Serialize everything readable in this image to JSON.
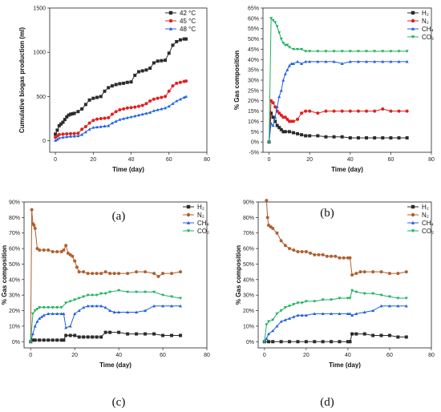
{
  "chart_data": [
    {
      "type": "line",
      "panel_label": "(a)",
      "xlabel": "Time (day)",
      "ylabel": "Cumulative biogas production (ml)",
      "xlim": [
        -3,
        80
      ],
      "ylim": [
        -130,
        1500
      ],
      "xticks": [
        0,
        20,
        40,
        60,
        80
      ],
      "yticks": [
        0,
        500,
        1000,
        1500
      ],
      "yformat": "plain",
      "legend": "top-right",
      "series": [
        {
          "name": "42 °C",
          "color": "#2b2b2b",
          "marker": "square",
          "x": [
            0,
            1,
            2,
            3,
            4,
            5,
            6,
            7,
            8,
            9,
            10,
            12,
            14,
            16,
            18,
            20,
            22,
            24,
            26,
            28,
            30,
            32,
            34,
            36,
            38,
            40,
            42,
            44,
            46,
            48,
            50,
            52,
            54,
            56,
            58,
            60,
            62,
            64,
            66,
            68,
            69
          ],
          "y": [
            75,
            120,
            170,
            190,
            210,
            240,
            270,
            290,
            300,
            305,
            310,
            330,
            360,
            410,
            460,
            480,
            490,
            500,
            560,
            600,
            620,
            635,
            645,
            650,
            660,
            665,
            740,
            780,
            790,
            800,
            820,
            880,
            900,
            905,
            910,
            990,
            1080,
            1120,
            1140,
            1150,
            1150
          ]
        },
        {
          "name": "45 °C",
          "color": "#e02020",
          "marker": "circle",
          "x": [
            0,
            1,
            2,
            4,
            6,
            8,
            10,
            12,
            14,
            16,
            18,
            20,
            22,
            24,
            26,
            28,
            30,
            32,
            34,
            36,
            38,
            40,
            42,
            44,
            46,
            48,
            50,
            52,
            54,
            56,
            58,
            60,
            62,
            64,
            66,
            68,
            69
          ],
          "y": [
            40,
            55,
            70,
            75,
            78,
            80,
            82,
            85,
            130,
            160,
            200,
            230,
            245,
            250,
            255,
            260,
            300,
            330,
            350,
            360,
            370,
            375,
            380,
            390,
            400,
            420,
            450,
            470,
            480,
            490,
            500,
            560,
            620,
            650,
            660,
            670,
            675
          ]
        },
        {
          "name": "48 °C",
          "color": "#2060e0",
          "marker": "triangle",
          "x": [
            0,
            1,
            2,
            4,
            6,
            8,
            10,
            12,
            14,
            16,
            18,
            20,
            22,
            24,
            26,
            28,
            30,
            32,
            34,
            36,
            38,
            40,
            42,
            44,
            46,
            48,
            50,
            52,
            54,
            56,
            58,
            60,
            62,
            64,
            66,
            68,
            69
          ],
          "y": [
            5,
            15,
            30,
            40,
            45,
            50,
            52,
            55,
            70,
            100,
            130,
            150,
            155,
            160,
            165,
            170,
            200,
            220,
            240,
            250,
            260,
            270,
            280,
            290,
            300,
            310,
            320,
            340,
            350,
            360,
            370,
            390,
            420,
            450,
            470,
            490,
            500
          ]
        }
      ]
    },
    {
      "type": "line",
      "panel_label": "(b)",
      "xlabel": "Time (day)",
      "ylabel": "% Gas composition",
      "xlim": [
        -3,
        80
      ],
      "ylim": [
        -5,
        65
      ],
      "xticks": [
        0,
        20,
        40,
        60,
        80
      ],
      "yticks": [
        -5,
        0,
        5,
        10,
        15,
        20,
        25,
        30,
        35,
        40,
        45,
        50,
        55,
        60,
        65
      ],
      "yformat": "percent",
      "legend": "top-right",
      "series": [
        {
          "name": "H₂",
          "color": "#2b2b2b",
          "marker": "square",
          "x": [
            0,
            1,
            2,
            3,
            4,
            5,
            6,
            7,
            8,
            10,
            12,
            14,
            16,
            18,
            20,
            24,
            28,
            32,
            36,
            40,
            44,
            48,
            52,
            56,
            60,
            64,
            68
          ],
          "y": [
            0,
            14,
            12,
            10,
            8,
            7,
            6,
            5,
            5,
            5,
            4.5,
            4,
            3.5,
            3,
            3,
            3,
            2.5,
            2.5,
            2.5,
            2,
            2,
            2,
            2,
            2,
            2,
            2,
            2
          ]
        },
        {
          "name": "N₂",
          "color": "#e02020",
          "marker": "circle",
          "x": [
            0,
            1,
            2,
            3,
            4,
            5,
            6,
            7,
            8,
            9,
            10,
            11,
            12,
            14,
            16,
            18,
            20,
            24,
            28,
            32,
            36,
            40,
            44,
            48,
            52,
            56,
            60,
            64,
            68
          ],
          "y": [
            0,
            20,
            19,
            17,
            15,
            14,
            13,
            12,
            12,
            11,
            10,
            10,
            10,
            11,
            14,
            15,
            15,
            14,
            15,
            15,
            15,
            15,
            15,
            15,
            15,
            16,
            15,
            15,
            15
          ]
        },
        {
          "name": "CH₄",
          "color": "#2060e0",
          "marker": "triangle",
          "x": [
            0,
            1,
            2,
            3,
            4,
            5,
            6,
            7,
            8,
            9,
            10,
            11,
            12,
            14,
            16,
            18,
            20,
            24,
            28,
            32,
            36,
            40,
            44,
            48,
            52,
            56,
            60,
            64,
            68
          ],
          "y": [
            0,
            9,
            8,
            12,
            17,
            22,
            25,
            30,
            33,
            35,
            37,
            38,
            38,
            39,
            38,
            39,
            39,
            39,
            39,
            39,
            38,
            39,
            39,
            39,
            39,
            39,
            39,
            39,
            39
          ]
        },
        {
          "name": "CO₂",
          "color": "#20b060",
          "marker": "triangle-down",
          "x": [
            0,
            1,
            2,
            3,
            4,
            5,
            6,
            7,
            8,
            9,
            10,
            12,
            14,
            16,
            18,
            20,
            24,
            28,
            32,
            36,
            40,
            44,
            48,
            52,
            56,
            60,
            64,
            68
          ],
          "y": [
            0,
            60,
            59,
            58,
            56,
            53,
            50,
            48,
            47,
            47,
            46,
            45,
            45,
            45,
            44,
            44,
            44,
            44,
            44,
            44,
            44,
            44,
            44,
            44,
            44,
            44,
            44,
            44
          ]
        }
      ]
    },
    {
      "type": "line",
      "panel_label": "(c)",
      "xlabel": "Time (day)",
      "ylabel": "% Gas composition",
      "xlim": [
        -3,
        80
      ],
      "ylim": [
        -4,
        90
      ],
      "xticks": [
        0,
        20,
        40,
        60,
        80
      ],
      "yticks": [
        0,
        10,
        20,
        30,
        40,
        50,
        60,
        70,
        80,
        90
      ],
      "yformat": "percent",
      "legend": "top-right",
      "series": [
        {
          "name": "H₂",
          "color": "#2b2b2b",
          "marker": "square",
          "x": [
            0,
            1,
            2,
            4,
            6,
            8,
            10,
            12,
            14,
            15,
            16,
            18,
            20,
            22,
            24,
            26,
            28,
            30,
            32,
            34,
            36,
            40,
            44,
            48,
            52,
            56,
            60,
            64,
            68
          ],
          "y": [
            0,
            1,
            1,
            1,
            1,
            1,
            1,
            1,
            1,
            1,
            4,
            4,
            4,
            3,
            3,
            3,
            3,
            3,
            3,
            6,
            6,
            6,
            5,
            5,
            5,
            5,
            4,
            4,
            4
          ]
        },
        {
          "name": "N₂",
          "color": "#b06030",
          "marker": "circle",
          "x": [
            0,
            0.5,
            1,
            1.5,
            2,
            3,
            4,
            6,
            8,
            10,
            12,
            14,
            15,
            16,
            17,
            18,
            19,
            20,
            21,
            22,
            24,
            26,
            28,
            30,
            32,
            34,
            36,
            38,
            40,
            44,
            48,
            52,
            56,
            58,
            60,
            64,
            68
          ],
          "y": [
            0,
            85,
            76,
            75,
            73,
            60,
            59,
            59,
            59,
            58,
            58,
            58,
            59,
            62,
            57,
            56,
            55,
            52,
            48,
            45,
            45,
            44,
            44,
            44,
            44,
            45,
            44,
            44,
            44,
            44,
            45,
            45,
            44,
            42,
            44,
            44,
            45
          ]
        },
        {
          "name": "CH₄",
          "color": "#2060e0",
          "marker": "triangle",
          "x": [
            0,
            1,
            2,
            3,
            4,
            5,
            6,
            8,
            10,
            12,
            14,
            15,
            16,
            18,
            20,
            22,
            24,
            26,
            28,
            30,
            32,
            34,
            36,
            38,
            40,
            44,
            48,
            52,
            56,
            60,
            64,
            68
          ],
          "y": [
            0,
            5,
            10,
            13,
            15,
            16,
            17,
            18,
            18,
            18,
            18,
            18,
            9,
            10,
            18,
            20,
            22,
            23,
            23,
            23,
            23,
            22,
            20,
            19,
            19,
            19,
            19,
            20,
            23,
            23,
            23,
            23
          ]
        },
        {
          "name": "CO₂",
          "color": "#20b060",
          "marker": "triangle-down",
          "x": [
            0,
            1,
            2,
            3,
            4,
            6,
            8,
            10,
            12,
            14,
            16,
            18,
            20,
            22,
            24,
            26,
            28,
            30,
            32,
            34,
            36,
            40,
            44,
            48,
            52,
            56,
            60,
            64,
            68
          ],
          "y": [
            0,
            18,
            20,
            21,
            22,
            22,
            22,
            22,
            22,
            22,
            25,
            26,
            27,
            28,
            29,
            30,
            30,
            30,
            31,
            31,
            32,
            33,
            32,
            32,
            32,
            32,
            30,
            29,
            28
          ]
        }
      ]
    },
    {
      "type": "line",
      "panel_label": "(d)",
      "xlabel": "Time (day)",
      "ylabel": "% Gas composition",
      "xlim": [
        -3,
        80
      ],
      "ylim": [
        -4,
        90
      ],
      "xticks": [
        0,
        20,
        40,
        60,
        80
      ],
      "yticks": [
        0,
        10,
        20,
        30,
        40,
        50,
        60,
        70,
        80,
        90
      ],
      "yformat": "percent",
      "legend": "top-right",
      "series": [
        {
          "name": "H₂",
          "color": "#2b2b2b",
          "marker": "square",
          "x": [
            0,
            2,
            4,
            8,
            12,
            16,
            20,
            24,
            28,
            32,
            36,
            40,
            41,
            42,
            44,
            48,
            52,
            56,
            60,
            64,
            68
          ],
          "y": [
            0,
            0,
            0,
            0,
            0,
            0,
            0,
            0,
            0,
            0,
            0,
            0,
            0,
            5,
            5,
            5,
            4,
            4,
            4,
            3,
            3
          ]
        },
        {
          "name": "N₂",
          "color": "#b06030",
          "marker": "circle",
          "x": [
            1,
            1.5,
            2,
            3,
            4,
            6,
            8,
            10,
            12,
            14,
            16,
            18,
            20,
            22,
            24,
            26,
            28,
            30,
            32,
            34,
            36,
            38,
            40,
            41,
            42,
            44,
            46,
            48,
            52,
            56,
            60,
            64,
            68
          ],
          "y": [
            91,
            80,
            75,
            74,
            73,
            70,
            65,
            62,
            60,
            59,
            58,
            58,
            58,
            57,
            56,
            56,
            56,
            55,
            55,
            55,
            54,
            54,
            54,
            54,
            43,
            44,
            45,
            45,
            45,
            45,
            44,
            44,
            45
          ]
        },
        {
          "name": "CH₄",
          "color": "#2060e0",
          "marker": "triangle",
          "x": [
            0,
            1,
            2,
            4,
            6,
            8,
            10,
            12,
            14,
            16,
            18,
            20,
            24,
            28,
            32,
            36,
            40,
            41,
            42,
            44,
            48,
            52,
            56,
            60,
            64,
            68
          ],
          "y": [
            0,
            2,
            5,
            7,
            10,
            13,
            14,
            15,
            16,
            17,
            17,
            17,
            18,
            18,
            18,
            18,
            18,
            18,
            17,
            18,
            19,
            20,
            23,
            23,
            23,
            23
          ]
        },
        {
          "name": "CO₂",
          "color": "#20b060",
          "marker": "triangle-down",
          "x": [
            0,
            1,
            2,
            4,
            6,
            8,
            10,
            12,
            14,
            16,
            18,
            20,
            24,
            28,
            32,
            36,
            40,
            41,
            42,
            44,
            48,
            52,
            56,
            60,
            64,
            68
          ],
          "y": [
            0,
            11,
            13,
            14,
            18,
            20,
            22,
            23,
            24,
            25,
            25,
            26,
            26,
            27,
            27,
            28,
            28,
            28,
            33,
            32,
            31,
            31,
            30,
            29,
            28,
            28
          ]
        }
      ]
    }
  ]
}
